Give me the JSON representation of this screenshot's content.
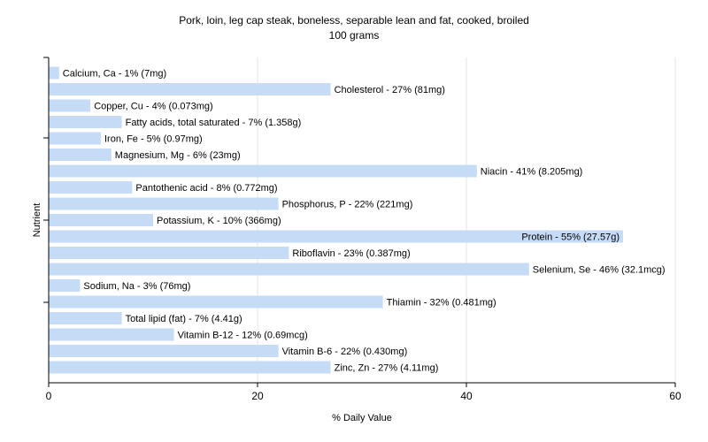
{
  "chart_data": {
    "type": "bar",
    "orientation": "horizontal",
    "title": "Pork, loin, leg cap steak, boneless, separable lean and fat, cooked, broiled",
    "subtitle": "100 grams",
    "xlabel": "% Daily Value",
    "ylabel": "Nutrient",
    "xlim": [
      0,
      60
    ],
    "xticks": [
      0,
      20,
      40,
      60
    ],
    "grid": true,
    "bar_color": "#c6dcf6",
    "categories": [
      "Calcium, Ca",
      "Cholesterol",
      "Copper, Cu",
      "Fatty acids, total saturated",
      "Iron, Fe",
      "Magnesium, Mg",
      "Niacin",
      "Pantothenic acid",
      "Phosphorus, P",
      "Potassium, K",
      "Protein",
      "Riboflavin",
      "Selenium, Se",
      "Sodium, Na",
      "Thiamin",
      "Total lipid (fat)",
      "Vitamin B-12",
      "Vitamin B-6",
      "Zinc, Zn"
    ],
    "values": [
      1,
      27,
      4,
      7,
      5,
      6,
      41,
      8,
      22,
      10,
      55,
      23,
      46,
      3,
      32,
      7,
      12,
      22,
      27
    ],
    "labels": [
      "Calcium, Ca - 1% (7mg)",
      "Cholesterol - 27% (81mg)",
      "Copper, Cu - 4% (0.073mg)",
      "Fatty acids, total saturated - 7% (1.358g)",
      "Iron, Fe - 5% (0.97mg)",
      "Magnesium, Mg - 6% (23mg)",
      "Niacin - 41% (8.205mg)",
      "Pantothenic acid - 8% (0.772mg)",
      "Phosphorus, P - 22% (221mg)",
      "Potassium, K - 10% (366mg)",
      "Protein - 55% (27.57g)",
      "Riboflavin - 23% (0.387mg)",
      "Selenium, Se - 46% (32.1mcg)",
      "Sodium, Na - 3% (76mg)",
      "Thiamin - 32% (0.481mg)",
      "Total lipid (fat) - 7% (4.41g)",
      "Vitamin B-12 - 12% (0.69mcg)",
      "Vitamin B-6 - 22% (0.430mg)",
      "Zinc, Zn - 27% (4.11mg)"
    ]
  }
}
